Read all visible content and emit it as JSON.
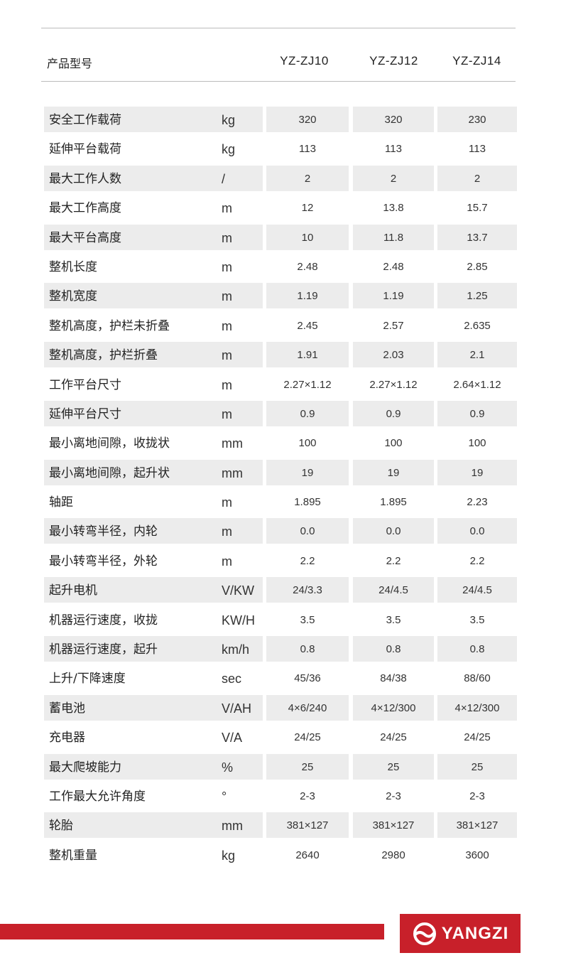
{
  "header": {
    "label": "产品型号",
    "models": [
      "YZ-ZJ10",
      "YZ-ZJ12",
      "YZ-ZJ14"
    ]
  },
  "rows": [
    {
      "label": "安全工作载荷",
      "unit": "kg",
      "values": [
        "320",
        "320",
        "230"
      ]
    },
    {
      "label": "延伸平台载荷",
      "unit": "kg",
      "values": [
        "113",
        "113",
        "113"
      ]
    },
    {
      "label": "最大工作人数",
      "unit": "/",
      "values": [
        "2",
        "2",
        "2"
      ]
    },
    {
      "label": "最大工作高度",
      "unit": "m",
      "values": [
        "12",
        "13.8",
        "15.7"
      ]
    },
    {
      "label": "最大平台高度",
      "unit": "m",
      "values": [
        "10",
        "11.8",
        "13.7"
      ]
    },
    {
      "label": "整机长度",
      "unit": "m",
      "values": [
        "2.48",
        "2.48",
        "2.85"
      ]
    },
    {
      "label": "整机宽度",
      "unit": "m",
      "values": [
        "1.19",
        "1.19",
        "1.25"
      ]
    },
    {
      "label": "整机高度，护栏未折叠",
      "unit": "m",
      "values": [
        "2.45",
        "2.57",
        "2.635"
      ]
    },
    {
      "label": "整机高度，护栏折叠",
      "unit": "m",
      "values": [
        "1.91",
        "2.03",
        "2.1"
      ]
    },
    {
      "label": "工作平台尺寸",
      "unit": "m",
      "values": [
        "2.27×1.12",
        "2.27×1.12",
        "2.64×1.12"
      ]
    },
    {
      "label": "延伸平台尺寸",
      "unit": "m",
      "values": [
        "0.9",
        "0.9",
        "0.9"
      ]
    },
    {
      "label": "最小离地间隙，收拢状",
      "unit": "mm",
      "values": [
        "100",
        "100",
        "100"
      ]
    },
    {
      "label": "最小离地间隙，起升状",
      "unit": "mm",
      "values": [
        "19",
        "19",
        "19"
      ]
    },
    {
      "label": "轴距",
      "unit": "m",
      "values": [
        "1.895",
        "1.895",
        "2.23"
      ]
    },
    {
      "label": "最小转弯半径，内轮",
      "unit": "m",
      "values": [
        "0.0",
        "0.0",
        "0.0"
      ]
    },
    {
      "label": "最小转弯半径，外轮",
      "unit": "m",
      "values": [
        "2.2",
        "2.2",
        "2.2"
      ]
    },
    {
      "label": "起升电机",
      "unit": "V/KW",
      "values": [
        "24/3.3",
        "24/4.5",
        "24/4.5"
      ]
    },
    {
      "label": "机器运行速度，收拢",
      "unit": "KW/H",
      "values": [
        "3.5",
        "3.5",
        "3.5"
      ]
    },
    {
      "label": "机器运行速度，起升",
      "unit": "km/h",
      "values": [
        "0.8",
        "0.8",
        "0.8"
      ]
    },
    {
      "label": "上升/下降速度",
      "unit": "sec",
      "values": [
        "45/36",
        "84/38",
        "88/60"
      ]
    },
    {
      "label": "蓄电池",
      "unit": "V/AH",
      "values": [
        "4×6/240",
        "4×12/300",
        "4×12/300"
      ]
    },
    {
      "label": "充电器",
      "unit": "V/A",
      "values": [
        "24/25",
        "24/25",
        "24/25"
      ]
    },
    {
      "label": "最大爬坡能力",
      "unit": "%",
      "values": [
        "25",
        "25",
        "25"
      ]
    },
    {
      "label": "工作最大允许角度",
      "unit": "°",
      "values": [
        "2-3",
        "2-3",
        "2-3"
      ]
    },
    {
      "label": "轮胎",
      "unit": "mm",
      "values": [
        "381×127",
        "381×127",
        "381×127"
      ]
    },
    {
      "label": "整机重量",
      "unit": "kg",
      "values": [
        "2640",
        "2980",
        "3600"
      ]
    }
  ],
  "brand": {
    "name": "YANGZI",
    "color": "#c8202a",
    "icon": "yangzi-wave-circle-logo"
  }
}
